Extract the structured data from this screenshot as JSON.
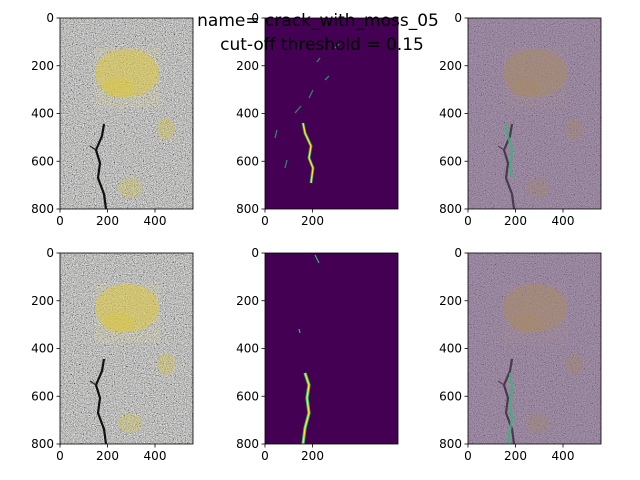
{
  "figure": {
    "title_line1": "name= crack_with_moss_05",
    "title_line2": "cut-off threshold = 0.15"
  },
  "colors": {
    "photo_gray": "#9a9a96",
    "moss_yellow": "#d8c23a",
    "mask_background": "#440154",
    "mask_crack_green": "#35b779",
    "mask_crack_yellow": "#fde725",
    "overlay_tint": "#7b5a86"
  },
  "chart_data": [
    {
      "type": "image",
      "content": "input photograph of cracked concrete with moss",
      "xlim": [
        0,
        560
      ],
      "ylim": [
        800,
        0
      ],
      "xticks": [
        "0",
        "200",
        "400"
      ],
      "yticks": [
        "0",
        "200",
        "400",
        "600",
        "800"
      ]
    },
    {
      "type": "heatmap",
      "content": "predicted crack probability",
      "xlim": [
        0,
        560
      ],
      "ylim": [
        800,
        0
      ],
      "xticks": [
        "0",
        "200"
      ],
      "yticks": [
        "0",
        "200",
        "400",
        "600",
        "800"
      ]
    },
    {
      "type": "image",
      "content": "photograph with prediction overlay",
      "xlim": [
        0,
        560
      ],
      "ylim": [
        800,
        0
      ],
      "xticks": [
        "0",
        "200",
        "400"
      ],
      "yticks": [
        "0",
        "200",
        "400",
        "600",
        "800"
      ]
    },
    {
      "type": "image",
      "content": "input photograph of cracked concrete with moss",
      "xlim": [
        0,
        560
      ],
      "ylim": [
        800,
        0
      ],
      "xticks": [
        "0",
        "200",
        "400"
      ],
      "yticks": [
        "0",
        "200",
        "400",
        "600",
        "800"
      ]
    },
    {
      "type": "heatmap",
      "content": "thresholded crack mask",
      "xlim": [
        0,
        560
      ],
      "ylim": [
        800,
        0
      ],
      "xticks": [
        "0",
        "200"
      ],
      "yticks": [
        "0",
        "200",
        "400",
        "600",
        "800"
      ]
    },
    {
      "type": "image",
      "content": "photograph with mask overlay",
      "xlim": [
        0,
        560
      ],
      "ylim": [
        800,
        0
      ],
      "xticks": [
        "0",
        "200",
        "400"
      ],
      "yticks": [
        "0",
        "200",
        "400",
        "600",
        "800"
      ]
    }
  ]
}
